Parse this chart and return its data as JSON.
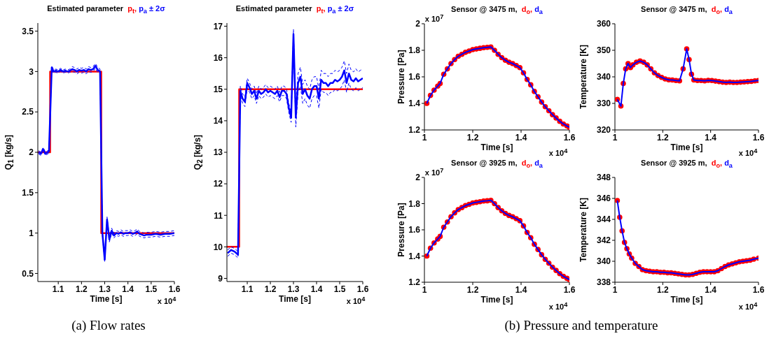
{
  "chart_data": [
    {
      "type": "line",
      "title": "Estimated parameter",
      "legend": "top",
      "xlabel": "Time [s]",
      "ylabel": "Q$_{1}$ [kg/s]",
      "xlim": [
        1.012,
        1.6
      ],
      "ylim": [
        0.4,
        3.6
      ],
      "xticks": [
        1.1,
        1.2,
        1.3,
        1.4,
        1.5,
        1.6
      ],
      "yticks": [
        0.5,
        1,
        1.5,
        2,
        2.5,
        3,
        3.5
      ],
      "annotations": [
        "x 10$^{4}$",
        "(a) Flow rates"
      ],
      "series": [
        {
          "name": "p$_{t}$,",
          "color": "#ff0000",
          "type": "line",
          "line_style": "solid",
          "x": [
            1.012,
            1.065,
            1.065,
            1.285,
            1.285,
            1.6
          ],
          "values": [
            2,
            2,
            3,
            3,
            1,
            1
          ]
        },
        {
          "name": "p$_{a}$ ± 2σ",
          "color": "#0000ff",
          "type": "line",
          "line_style": "solid",
          "x": [
            1.015,
            1.025,
            1.035,
            1.045,
            1.06,
            1.072,
            1.08,
            1.09,
            1.1,
            1.11,
            1.12,
            1.13,
            1.14,
            1.15,
            1.16,
            1.17,
            1.18,
            1.19,
            1.2,
            1.21,
            1.22,
            1.23,
            1.24,
            1.25,
            1.26,
            1.27,
            1.28,
            1.29,
            1.3,
            1.31,
            1.32,
            1.33,
            1.34,
            1.35,
            1.36,
            1.37,
            1.38,
            1.39,
            1.4,
            1.41,
            1.42,
            1.43,
            1.44,
            1.45,
            1.46,
            1.47,
            1.48,
            1.49,
            1.5,
            1.52,
            1.54,
            1.56,
            1.58,
            1.6
          ],
          "values": [
            2.0,
            1.98,
            2.04,
            1.98,
            2.01,
            3.05,
            3.0,
            3.01,
            3.0,
            3.02,
            3.0,
            3.01,
            3.0,
            3.01,
            3.03,
            3.02,
            3.0,
            3.02,
            3.01,
            3.02,
            3.0,
            3.03,
            3.02,
            3.03,
            3.07,
            3.02,
            3.0,
            1.0,
            0.67,
            1.17,
            0.92,
            1.03,
            0.97,
            1.0,
            0.99,
            1.01,
            0.99,
            1.0,
            1.0,
            1.01,
            0.99,
            1.0,
            1.02,
            0.99,
            0.98,
            0.97,
            0.98,
            0.98,
            0.98,
            0.99,
            0.98,
            0.99,
            0.99,
            1.0
          ]
        },
        {
          "color": "#0000ff",
          "type": "line",
          "line_style": "dashed",
          "x": [
            1.015,
            1.025,
            1.035,
            1.045,
            1.06,
            1.072,
            1.08,
            1.09,
            1.1,
            1.11,
            1.12,
            1.13,
            1.14,
            1.15,
            1.16,
            1.17,
            1.18,
            1.19,
            1.2,
            1.21,
            1.22,
            1.23,
            1.24,
            1.25,
            1.26,
            1.27,
            1.28,
            1.29,
            1.3,
            1.31,
            1.32,
            1.33,
            1.34,
            1.35,
            1.36,
            1.37,
            1.38,
            1.39,
            1.4,
            1.41,
            1.42,
            1.43,
            1.44,
            1.45,
            1.46,
            1.47,
            1.48,
            1.49,
            1.5,
            1.52,
            1.54,
            1.56,
            1.58,
            1.6
          ],
          "values": [
            1.98,
            1.96,
            2.02,
            1.96,
            1.99,
            3.03,
            2.98,
            2.99,
            2.98,
            3.0,
            2.98,
            2.99,
            2.98,
            2.99,
            3.0,
            2.99,
            2.97,
            2.99,
            2.98,
            2.99,
            2.97,
            3.0,
            2.99,
            3.0,
            3.04,
            2.99,
            2.97,
            0.97,
            0.64,
            1.14,
            0.89,
            1.0,
            0.94,
            0.97,
            0.96,
            0.98,
            0.96,
            0.97,
            0.97,
            0.98,
            0.96,
            0.97,
            0.99,
            0.96,
            0.95,
            0.94,
            0.95,
            0.95,
            0.95,
            0.96,
            0.95,
            0.96,
            0.96,
            0.97
          ]
        },
        {
          "color": "#0000ff",
          "type": "line",
          "line_style": "dashed",
          "x": [
            1.015,
            1.025,
            1.035,
            1.045,
            1.06,
            1.072,
            1.08,
            1.09,
            1.1,
            1.11,
            1.12,
            1.13,
            1.14,
            1.15,
            1.16,
            1.17,
            1.18,
            1.19,
            1.2,
            1.21,
            1.22,
            1.23,
            1.24,
            1.25,
            1.26,
            1.27,
            1.28,
            1.29,
            1.3,
            1.31,
            1.32,
            1.33,
            1.34,
            1.35,
            1.36,
            1.37,
            1.38,
            1.39,
            1.4,
            1.41,
            1.42,
            1.43,
            1.44,
            1.45,
            1.46,
            1.47,
            1.48,
            1.49,
            1.5,
            1.52,
            1.54,
            1.56,
            1.58,
            1.6
          ],
          "values": [
            2.02,
            2.0,
            2.06,
            2.0,
            2.03,
            3.07,
            3.02,
            3.03,
            3.02,
            3.04,
            3.02,
            3.03,
            3.02,
            3.03,
            3.06,
            3.05,
            3.03,
            3.05,
            3.04,
            3.05,
            3.03,
            3.06,
            3.05,
            3.06,
            3.1,
            3.05,
            3.03,
            1.03,
            0.7,
            1.2,
            0.95,
            1.06,
            1.0,
            1.03,
            1.02,
            1.04,
            1.02,
            1.03,
            1.03,
            1.04,
            1.02,
            1.03,
            1.05,
            1.02,
            1.01,
            1.0,
            1.01,
            1.01,
            1.01,
            1.02,
            1.01,
            1.02,
            1.02,
            1.03
          ]
        }
      ]
    },
    {
      "type": "line",
      "title": "Estimated parameter",
      "legend": "top",
      "xlabel": "Time [s]",
      "ylabel": "Q$_{2}$ [kg/s]",
      "xlim": [
        1.012,
        1.6
      ],
      "ylim": [
        8.9,
        17.1
      ],
      "xticks": [
        1.1,
        1.2,
        1.3,
        1.4,
        1.5,
        1.6
      ],
      "yticks": [
        9,
        10,
        11,
        12,
        13,
        14,
        15,
        16,
        17
      ],
      "annotations": [
        "x 10$^{4}$"
      ],
      "series": [
        {
          "name": "p$_{t}$,",
          "color": "#ff0000",
          "type": "line",
          "line_style": "solid",
          "x": [
            1.012,
            1.065,
            1.065,
            1.6
          ],
          "values": [
            10,
            10,
            15,
            15
          ]
        },
        {
          "name": "p$_{a}$ ± 2σ",
          "color": "#0000ff",
          "type": "line",
          "line_style": "solid",
          "x": [
            1.015,
            1.03,
            1.045,
            1.06,
            1.07,
            1.08,
            1.09,
            1.1,
            1.11,
            1.12,
            1.13,
            1.14,
            1.15,
            1.16,
            1.17,
            1.18,
            1.19,
            1.2,
            1.21,
            1.22,
            1.23,
            1.24,
            1.25,
            1.26,
            1.27,
            1.28,
            1.29,
            1.3,
            1.31,
            1.32,
            1.33,
            1.34,
            1.35,
            1.36,
            1.37,
            1.38,
            1.39,
            1.4,
            1.41,
            1.42,
            1.43,
            1.44,
            1.45,
            1.46,
            1.47,
            1.48,
            1.49,
            1.5,
            1.51,
            1.52,
            1.53,
            1.54,
            1.55,
            1.56,
            1.57,
            1.58,
            1.59,
            1.6
          ],
          "values": [
            9.8,
            9.9,
            9.85,
            9.75,
            14.95,
            14.7,
            14.6,
            15.2,
            15.05,
            14.85,
            14.95,
            14.7,
            14.95,
            14.85,
            14.9,
            15.0,
            14.9,
            14.95,
            14.9,
            14.85,
            14.95,
            14.75,
            14.95,
            14.95,
            14.85,
            14.4,
            14.1,
            16.75,
            14.1,
            15.2,
            15.4,
            14.85,
            15.0,
            14.8,
            14.7,
            15.0,
            15.1,
            15.1,
            14.7,
            15.3,
            15.2,
            15.2,
            15.1,
            15.2,
            15.2,
            15.3,
            15.25,
            15.3,
            15.4,
            15.6,
            15.2,
            15.5,
            15.3,
            15.25,
            15.35,
            15.25,
            15.3,
            15.35
          ]
        },
        {
          "color": "#0000ff",
          "type": "line",
          "line_style": "dashed",
          "x": [
            1.015,
            1.03,
            1.045,
            1.06,
            1.07,
            1.08,
            1.09,
            1.1,
            1.11,
            1.12,
            1.13,
            1.14,
            1.15,
            1.16,
            1.17,
            1.18,
            1.19,
            1.2,
            1.21,
            1.22,
            1.23,
            1.24,
            1.25,
            1.26,
            1.27,
            1.28,
            1.29,
            1.3,
            1.31,
            1.32,
            1.33,
            1.34,
            1.35,
            1.36,
            1.37,
            1.38,
            1.39,
            1.4,
            1.41,
            1.42,
            1.43,
            1.44,
            1.45,
            1.46,
            1.47,
            1.48,
            1.49,
            1.5,
            1.51,
            1.52,
            1.53,
            1.54,
            1.55,
            1.56,
            1.57,
            1.58,
            1.59,
            1.6
          ],
          "values": [
            9.7,
            9.8,
            9.75,
            9.65,
            14.8,
            14.55,
            14.45,
            15.05,
            14.9,
            14.7,
            14.8,
            14.55,
            14.8,
            14.7,
            14.75,
            14.85,
            14.75,
            14.8,
            14.75,
            14.7,
            14.8,
            14.6,
            14.8,
            14.8,
            14.7,
            14.25,
            13.95,
            16.6,
            13.8,
            14.9,
            15.1,
            14.55,
            14.7,
            14.5,
            14.4,
            14.7,
            14.8,
            14.8,
            14.4,
            15.0,
            14.9,
            14.9,
            14.8,
            14.9,
            14.9,
            15.0,
            14.95,
            15.0,
            15.1,
            15.3,
            14.9,
            15.2,
            15.0,
            14.95,
            15.05,
            14.95,
            15.0,
            15.05
          ]
        },
        {
          "color": "#0000ff",
          "type": "line",
          "line_style": "dashed",
          "x": [
            1.015,
            1.03,
            1.045,
            1.06,
            1.07,
            1.08,
            1.09,
            1.1,
            1.11,
            1.12,
            1.13,
            1.14,
            1.15,
            1.16,
            1.17,
            1.18,
            1.19,
            1.2,
            1.21,
            1.22,
            1.23,
            1.24,
            1.25,
            1.26,
            1.27,
            1.28,
            1.29,
            1.3,
            1.31,
            1.32,
            1.33,
            1.34,
            1.35,
            1.36,
            1.37,
            1.38,
            1.39,
            1.4,
            1.41,
            1.42,
            1.43,
            1.44,
            1.45,
            1.46,
            1.47,
            1.48,
            1.49,
            1.5,
            1.51,
            1.52,
            1.53,
            1.54,
            1.55,
            1.56,
            1.57,
            1.58,
            1.59,
            1.6
          ],
          "values": [
            9.9,
            10.0,
            9.95,
            9.85,
            15.1,
            14.85,
            14.75,
            15.35,
            15.2,
            15.0,
            15.1,
            14.85,
            15.1,
            15.0,
            15.05,
            15.15,
            15.05,
            15.1,
            15.05,
            15.0,
            15.1,
            14.9,
            15.1,
            15.1,
            15.0,
            14.55,
            14.25,
            16.9,
            14.4,
            15.5,
            15.7,
            15.15,
            15.3,
            15.1,
            15.0,
            15.3,
            15.4,
            15.4,
            15.0,
            15.6,
            15.5,
            15.5,
            15.4,
            15.5,
            15.5,
            15.6,
            15.55,
            15.6,
            15.7,
            15.9,
            15.5,
            15.8,
            15.6,
            15.55,
            15.65,
            15.55,
            15.6,
            15.65
          ]
        }
      ]
    },
    {
      "type": "line",
      "title": "Sensor @ 3475 m,",
      "legend": "top",
      "xlabel": "Time [s]",
      "ylabel": "Pressure [Pa]",
      "xlim": [
        1,
        1.6
      ],
      "ylim": [
        1.2,
        2
      ],
      "xticks": [
        1,
        1.2,
        1.4,
        1.6
      ],
      "yticks": [
        1.2,
        1.4,
        1.6,
        1.8,
        2
      ],
      "annotations": [
        "x 10$^{7}$",
        "x 10$^{4}$",
        "(b) Pressure and temperature"
      ],
      "x": [
        1.01,
        1.025,
        1.04,
        1.055,
        1.065,
        1.08,
        1.095,
        1.11,
        1.125,
        1.14,
        1.155,
        1.17,
        1.185,
        1.2,
        1.215,
        1.23,
        1.245,
        1.26,
        1.275,
        1.29,
        1.305,
        1.32,
        1.335,
        1.35,
        1.365,
        1.38,
        1.395,
        1.41,
        1.425,
        1.44,
        1.455,
        1.47,
        1.485,
        1.5,
        1.515,
        1.53,
        1.545,
        1.56,
        1.575,
        1.59,
        1.6
      ],
      "series": [
        {
          "name": "d$_{o}$,",
          "color": "#ff0000",
          "type": "scatter",
          "marker": "circle",
          "values": [
            1.4,
            1.46,
            1.5,
            1.53,
            1.55,
            1.62,
            1.66,
            1.7,
            1.73,
            1.755,
            1.77,
            1.785,
            1.795,
            1.805,
            1.81,
            1.815,
            1.82,
            1.822,
            1.825,
            1.8,
            1.77,
            1.745,
            1.725,
            1.71,
            1.7,
            1.685,
            1.67,
            1.63,
            1.58,
            1.54,
            1.49,
            1.45,
            1.41,
            1.375,
            1.345,
            1.315,
            1.29,
            1.265,
            1.245,
            1.23,
            1.22
          ]
        },
        {
          "name": "d$_{a}$",
          "color": "#0000ff",
          "type": "line",
          "line_style": "solid",
          "values": [
            1.4,
            1.46,
            1.5,
            1.53,
            1.55,
            1.62,
            1.66,
            1.7,
            1.73,
            1.755,
            1.77,
            1.785,
            1.795,
            1.805,
            1.81,
            1.815,
            1.82,
            1.822,
            1.825,
            1.8,
            1.77,
            1.745,
            1.725,
            1.71,
            1.7,
            1.685,
            1.67,
            1.63,
            1.58,
            1.54,
            1.49,
            1.45,
            1.41,
            1.375,
            1.345,
            1.315,
            1.29,
            1.265,
            1.245,
            1.23,
            1.22
          ]
        }
      ]
    },
    {
      "type": "line",
      "title": "Sensor @ 3475 m,",
      "legend": "top",
      "xlabel": "Time [s]",
      "ylabel": "Temperature [K]",
      "xlim": [
        1,
        1.6
      ],
      "ylim": [
        320,
        360
      ],
      "xticks": [
        1,
        1.2,
        1.4,
        1.6
      ],
      "yticks": [
        320,
        330,
        340,
        350,
        360
      ],
      "annotations": [
        "x 10$^{4}$"
      ],
      "x": [
        1.01,
        1.025,
        1.035,
        1.045,
        1.055,
        1.065,
        1.075,
        1.09,
        1.105,
        1.12,
        1.135,
        1.15,
        1.165,
        1.18,
        1.195,
        1.21,
        1.225,
        1.24,
        1.255,
        1.27,
        1.285,
        1.3,
        1.31,
        1.32,
        1.33,
        1.345,
        1.36,
        1.375,
        1.39,
        1.405,
        1.42,
        1.435,
        1.45,
        1.465,
        1.48,
        1.495,
        1.51,
        1.525,
        1.54,
        1.555,
        1.57,
        1.585,
        1.6
      ],
      "series": [
        {
          "name": "d$_{o}$,",
          "color": "#ff0000",
          "type": "scatter",
          "marker": "circle",
          "values": [
            331.5,
            329,
            337.5,
            343,
            345,
            343.5,
            344.5,
            345.5,
            346,
            345.5,
            344.5,
            343,
            341.5,
            340.5,
            339.8,
            339.2,
            338.9,
            338.8,
            338.6,
            338.5,
            343,
            350.5,
            346.5,
            341,
            338.8,
            338.6,
            338.6,
            338.5,
            338.7,
            338.6,
            338.4,
            338.2,
            338,
            337.9,
            338,
            337.9,
            337.9,
            338,
            338.1,
            338.2,
            338.3,
            338.5,
            338.6
          ]
        },
        {
          "name": "d$_{a}$",
          "color": "#0000ff",
          "type": "line",
          "line_style": "solid",
          "values": [
            331.5,
            329,
            337.5,
            343,
            345,
            343.5,
            344.5,
            345.5,
            346,
            345.5,
            344.5,
            343,
            341.5,
            340.5,
            339.8,
            339.2,
            338.9,
            338.8,
            338.6,
            338.5,
            343,
            350.5,
            346.5,
            341,
            338.8,
            338.6,
            338.6,
            338.5,
            338.7,
            338.6,
            338.4,
            338.2,
            338,
            337.9,
            338,
            337.9,
            337.9,
            338,
            338.1,
            338.2,
            338.3,
            338.5,
            338.6
          ]
        }
      ]
    },
    {
      "type": "line",
      "title": "Sensor @ 3925 m,",
      "legend": "top",
      "xlabel": "Time [s]",
      "ylabel": "Pressure [Pa]",
      "xlim": [
        1,
        1.6
      ],
      "ylim": [
        1.2,
        2
      ],
      "xticks": [
        1,
        1.2,
        1.4,
        1.6
      ],
      "yticks": [
        1.2,
        1.4,
        1.6,
        1.8,
        2
      ],
      "annotations": [
        "x 10$^{7}$",
        "x 10$^{4}$"
      ],
      "x": [
        1.01,
        1.025,
        1.04,
        1.055,
        1.065,
        1.08,
        1.095,
        1.11,
        1.125,
        1.14,
        1.155,
        1.17,
        1.185,
        1.2,
        1.215,
        1.23,
        1.245,
        1.26,
        1.275,
        1.29,
        1.305,
        1.32,
        1.335,
        1.35,
        1.365,
        1.38,
        1.395,
        1.41,
        1.425,
        1.44,
        1.455,
        1.47,
        1.485,
        1.5,
        1.515,
        1.53,
        1.545,
        1.56,
        1.575,
        1.59,
        1.6
      ],
      "series": [
        {
          "name": "d$_{o}$,",
          "color": "#ff0000",
          "type": "scatter",
          "marker": "circle",
          "values": [
            1.4,
            1.46,
            1.5,
            1.53,
            1.55,
            1.62,
            1.66,
            1.7,
            1.73,
            1.755,
            1.77,
            1.785,
            1.795,
            1.805,
            1.81,
            1.815,
            1.82,
            1.822,
            1.825,
            1.8,
            1.77,
            1.745,
            1.725,
            1.71,
            1.7,
            1.685,
            1.67,
            1.63,
            1.58,
            1.54,
            1.49,
            1.45,
            1.41,
            1.375,
            1.345,
            1.315,
            1.29,
            1.265,
            1.245,
            1.23,
            1.22
          ]
        },
        {
          "name": "d$_{a}$",
          "color": "#0000ff",
          "type": "line",
          "line_style": "solid",
          "values": [
            1.4,
            1.46,
            1.5,
            1.53,
            1.55,
            1.62,
            1.66,
            1.7,
            1.73,
            1.755,
            1.77,
            1.785,
            1.795,
            1.805,
            1.81,
            1.815,
            1.82,
            1.822,
            1.825,
            1.8,
            1.77,
            1.745,
            1.725,
            1.71,
            1.7,
            1.685,
            1.67,
            1.63,
            1.58,
            1.54,
            1.49,
            1.45,
            1.41,
            1.375,
            1.345,
            1.315,
            1.29,
            1.265,
            1.245,
            1.23,
            1.22
          ]
        }
      ]
    },
    {
      "type": "line",
      "title": "Sensor @ 3925 m,",
      "legend": "top",
      "xlabel": "Time [s]",
      "ylabel": "Temperature [K]",
      "xlim": [
        1,
        1.6
      ],
      "ylim": [
        338,
        348
      ],
      "xticks": [
        1,
        1.2,
        1.4,
        1.6
      ],
      "yticks": [
        338,
        340,
        342,
        344,
        346,
        348
      ],
      "annotations": [
        "x 10$^{4}$"
      ],
      "x": [
        1.01,
        1.02,
        1.03,
        1.04,
        1.05,
        1.06,
        1.07,
        1.085,
        1.1,
        1.115,
        1.13,
        1.145,
        1.16,
        1.175,
        1.19,
        1.205,
        1.22,
        1.235,
        1.25,
        1.265,
        1.28,
        1.295,
        1.31,
        1.325,
        1.34,
        1.355,
        1.37,
        1.385,
        1.4,
        1.415,
        1.43,
        1.445,
        1.46,
        1.475,
        1.49,
        1.505,
        1.52,
        1.535,
        1.55,
        1.565,
        1.58,
        1.6
      ],
      "series": [
        {
          "name": "d$_{o}$,",
          "color": "#ff0000",
          "type": "scatter",
          "marker": "circle",
          "values": [
            345.8,
            344.2,
            342.9,
            341.8,
            341.2,
            340.7,
            340.3,
            339.8,
            339.5,
            339.2,
            339.1,
            339.05,
            339.0,
            339.0,
            338.95,
            338.95,
            338.9,
            338.9,
            338.85,
            338.8,
            338.75,
            338.7,
            338.7,
            338.75,
            338.85,
            338.95,
            339.0,
            339.0,
            339.0,
            339.0,
            339.1,
            339.3,
            339.5,
            339.65,
            339.75,
            339.85,
            339.95,
            340.0,
            340.05,
            340.1,
            340.2,
            340.3
          ]
        },
        {
          "name": "d$_{a}$",
          "color": "#0000ff",
          "type": "line",
          "line_style": "solid",
          "values": [
            345.8,
            344.2,
            342.9,
            341.8,
            341.2,
            340.7,
            340.3,
            339.8,
            339.5,
            339.2,
            339.1,
            339.05,
            339.0,
            339.0,
            338.95,
            338.95,
            338.9,
            338.9,
            338.85,
            338.8,
            338.75,
            338.7,
            338.7,
            338.75,
            338.85,
            338.95,
            339.0,
            339.0,
            339.0,
            339.0,
            339.1,
            339.3,
            339.5,
            339.65,
            339.75,
            339.85,
            339.95,
            340.0,
            340.05,
            340.1,
            340.2,
            340.3
          ]
        }
      ]
    }
  ]
}
